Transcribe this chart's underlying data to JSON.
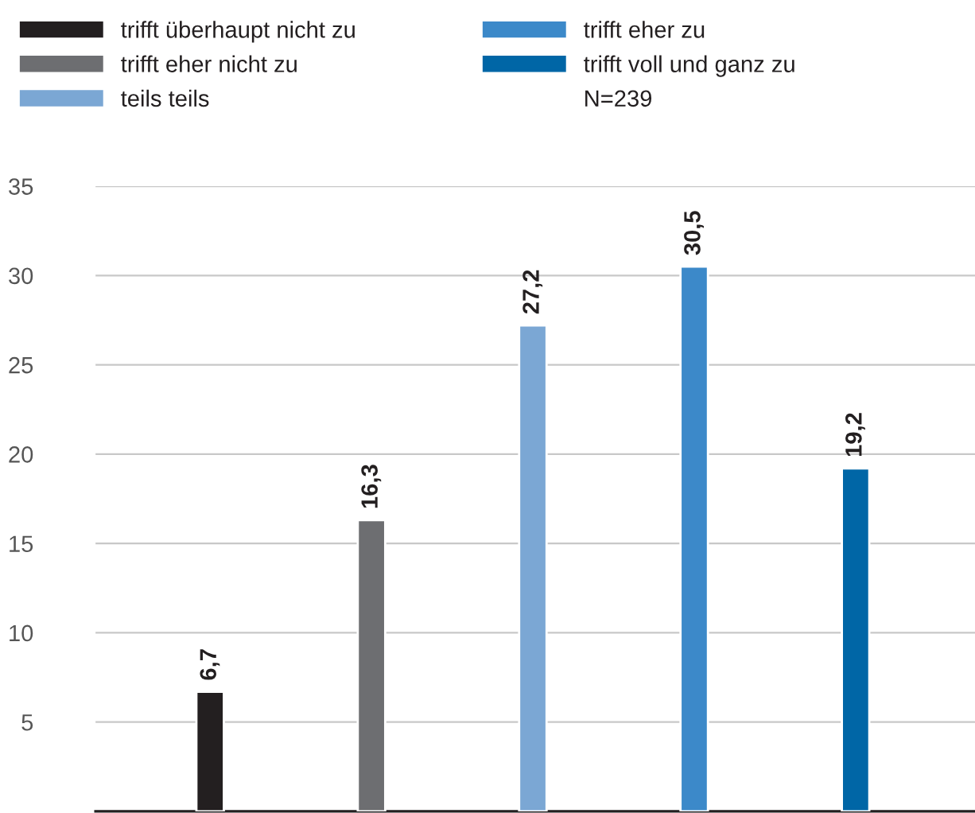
{
  "chart_data": {
    "type": "bar",
    "categories": [
      null,
      null,
      null,
      null,
      null
    ],
    "series": [
      {
        "name": "trifft überhaupt nicht zu",
        "color": "#231f20",
        "values": [
          6.7,
          null,
          null,
          null,
          null
        ],
        "value_labels": [
          "6,7",
          null,
          null,
          null,
          null
        ]
      },
      {
        "name": "trifft eher nicht zu",
        "color": "#6d6e71",
        "values": [
          null,
          16.3,
          null,
          null,
          null
        ],
        "value_labels": [
          null,
          "16,3",
          null,
          null,
          null
        ]
      },
      {
        "name": "teils teils",
        "color": "#7ba7d4",
        "values": [
          null,
          null,
          27.2,
          null,
          null
        ],
        "value_labels": [
          null,
          null,
          "27,2",
          null,
          null
        ]
      },
      {
        "name": "trifft eher zu",
        "color": "#3c89c9",
        "values": [
          null,
          null,
          null,
          30.5,
          null
        ],
        "value_labels": [
          null,
          null,
          null,
          "30,5",
          null
        ]
      },
      {
        "name": "trifft voll und ganz zu",
        "color": "#0066a6",
        "values": [
          null,
          null,
          null,
          null,
          19.2
        ],
        "value_labels": [
          null,
          null,
          null,
          null,
          "19,2"
        ]
      }
    ],
    "annotations": [
      "N=239"
    ],
    "ylim": [
      0,
      35
    ],
    "yticks": [
      {
        "value": 0,
        "label": null
      },
      5,
      10,
      15,
      20,
      25,
      30,
      35
    ],
    "grid": "y",
    "legend": "top left"
  }
}
